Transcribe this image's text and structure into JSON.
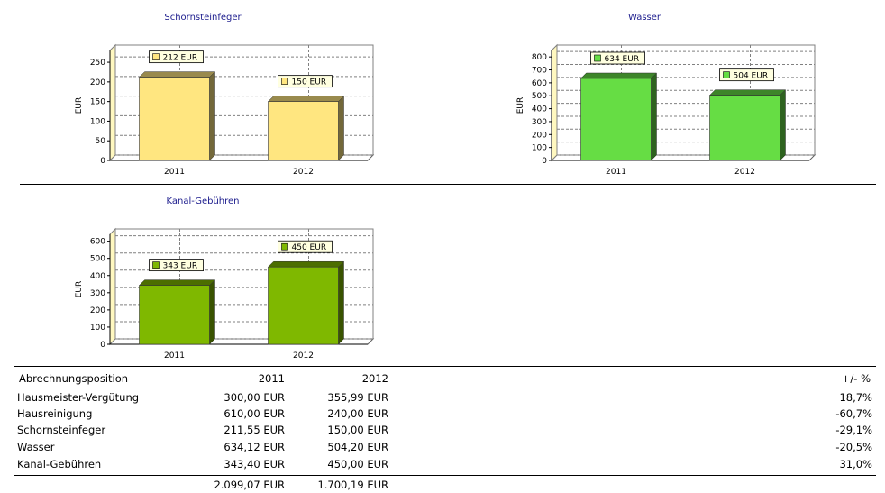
{
  "colors": {
    "schornsteinfeger": "#ffe680",
    "wasser": "#66dd44",
    "kanal": "#7fb800",
    "title": "#1a1a8c"
  },
  "chart_data": [
    {
      "id": "schornsteinfeger",
      "type": "bar",
      "title": "Schornsteinfeger",
      "ylabel": "EUR",
      "categories": [
        "2011",
        "2012"
      ],
      "values": [
        212,
        150
      ],
      "data_labels": [
        "212 EUR",
        "150 EUR"
      ],
      "yticks": [
        0,
        50,
        100,
        150,
        200,
        250
      ],
      "ylim": [
        0,
        280
      ],
      "color": "#ffe680",
      "grid": true
    },
    {
      "id": "wasser",
      "type": "bar",
      "title": "Wasser",
      "ylabel": "EUR",
      "categories": [
        "2011",
        "2012"
      ],
      "values": [
        634,
        504
      ],
      "data_labels": [
        "634 EUR",
        "504 EUR"
      ],
      "yticks": [
        0,
        100,
        200,
        300,
        400,
        500,
        600,
        700,
        800
      ],
      "ylim": [
        0,
        850
      ],
      "color": "#66dd44",
      "grid": true
    },
    {
      "id": "kanal",
      "type": "bar",
      "title": "Kanal-Gebühren",
      "ylabel": "EUR",
      "categories": [
        "2011",
        "2012"
      ],
      "values": [
        343,
        450
      ],
      "data_labels": [
        "343 EUR",
        "450 EUR"
      ],
      "yticks": [
        0,
        100,
        200,
        300,
        400,
        500,
        600
      ],
      "ylim": [
        0,
        640
      ],
      "color": "#7fb800",
      "grid": true
    }
  ],
  "table": {
    "headers": [
      "Abrechnungsposition",
      "2011",
      "2012",
      "+/- %"
    ],
    "rows": [
      [
        "Hausmeister-Vergütung",
        "300,00 EUR",
        "355,99 EUR",
        "18,7%"
      ],
      [
        "Hausreinigung",
        "610,00 EUR",
        "240,00 EUR",
        "-60,7%"
      ],
      [
        "Schornsteinfeger",
        "211,55 EUR",
        "150,00 EUR",
        "-29,1%"
      ],
      [
        "Wasser",
        "634,12 EUR",
        "504,20 EUR",
        "-20,5%"
      ],
      [
        "Kanal-Gebühren",
        "343,40 EUR",
        "450,00 EUR",
        "31,0%"
      ]
    ],
    "totals": [
      "",
      "2.099,07 EUR",
      "1.700,19 EUR",
      ""
    ]
  }
}
